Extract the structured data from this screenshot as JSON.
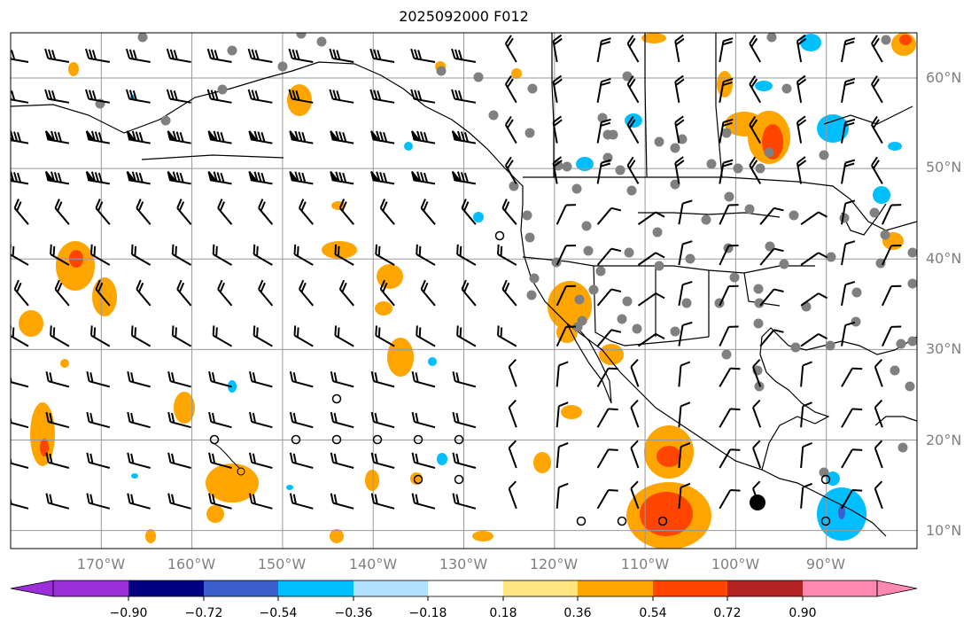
{
  "title": "2025092000 F012",
  "map": {
    "lon_range": [
      -180,
      -80
    ],
    "lat_range": [
      8,
      65
    ],
    "grid_lons": [
      -170,
      -160,
      -150,
      -140,
      -130,
      -120,
      -110,
      -100,
      -90
    ],
    "grid_lats": [
      10,
      20,
      30,
      40,
      50,
      60
    ],
    "lon_labels": [
      "170°W",
      "160°W",
      "150°W",
      "140°W",
      "130°W",
      "120°W",
      "110°W",
      "100°W",
      "90°W"
    ],
    "lat_labels": [
      "10°N",
      "20°N",
      "30°N",
      "40°N",
      "50°N",
      "60°N"
    ]
  },
  "colorbar": {
    "ticks": [
      "−0.90",
      "−0.72",
      "−0.54",
      "−0.36",
      "−0.18",
      "0.18",
      "0.36",
      "0.54",
      "0.72",
      "0.90"
    ],
    "colors": [
      "#9b30d9",
      "#000080",
      "#3a5fcd",
      "#00bfff",
      "#b0e2ff",
      "#ffffff",
      "#ffe680",
      "#ffa500",
      "#ff4500",
      "#b22222",
      "#ff88b0"
    ]
  }
}
